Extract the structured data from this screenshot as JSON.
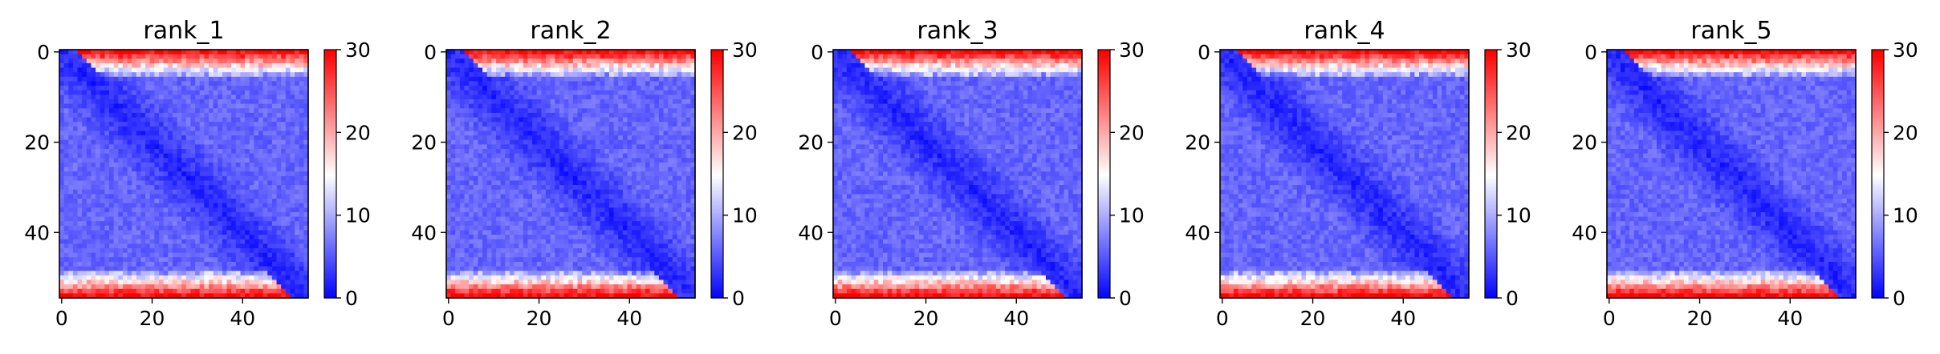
{
  "figure": {
    "colormap": "bwr",
    "colors": {
      "low": "#0000ff",
      "mid": "#ffffff",
      "high": "#ff0000"
    }
  },
  "chart_data": [
    {
      "type": "heatmap",
      "title": "rank_1",
      "matrix_size": 55,
      "x_ticks": [
        0,
        20,
        40
      ],
      "y_ticks": [
        0,
        20,
        40
      ],
      "xlim": [
        -0.5,
        54.5
      ],
      "ylim": [
        54.5,
        -0.5
      ],
      "colorbar": {
        "range": [
          0,
          30
        ],
        "ticks": [
          0,
          10,
          20,
          30
        ]
      },
      "value_model": {
        "near_diagonal": 2,
        "typical_off_diagonal": 6,
        "border_rows_cols": 30,
        "border_width": 6
      },
      "colormap": "bwr",
      "grid": false,
      "legend": "none"
    },
    {
      "type": "heatmap",
      "title": "rank_2",
      "matrix_size": 55,
      "x_ticks": [
        0,
        20,
        40
      ],
      "y_ticks": [
        0,
        20,
        40
      ],
      "xlim": [
        -0.5,
        54.5
      ],
      "ylim": [
        54.5,
        -0.5
      ],
      "colorbar": {
        "range": [
          0,
          30
        ],
        "ticks": [
          0,
          10,
          20,
          30
        ]
      },
      "value_model": {
        "near_diagonal": 2,
        "typical_off_diagonal": 6,
        "border_rows_cols": 30,
        "border_width": 6
      },
      "colormap": "bwr",
      "grid": false,
      "legend": "none"
    },
    {
      "type": "heatmap",
      "title": "rank_3",
      "matrix_size": 55,
      "x_ticks": [
        0,
        20,
        40
      ],
      "y_ticks": [
        0,
        20,
        40
      ],
      "xlim": [
        -0.5,
        54.5
      ],
      "ylim": [
        54.5,
        -0.5
      ],
      "colorbar": {
        "range": [
          0,
          30
        ],
        "ticks": [
          0,
          10,
          20,
          30
        ]
      },
      "value_model": {
        "near_diagonal": 2,
        "typical_off_diagonal": 6,
        "border_rows_cols": 30,
        "border_width": 6
      },
      "colormap": "bwr",
      "grid": false,
      "legend": "none"
    },
    {
      "type": "heatmap",
      "title": "rank_4",
      "matrix_size": 55,
      "x_ticks": [
        0,
        20,
        40
      ],
      "y_ticks": [
        0,
        20,
        40
      ],
      "xlim": [
        -0.5,
        54.5
      ],
      "ylim": [
        54.5,
        -0.5
      ],
      "colorbar": {
        "range": [
          0,
          30
        ],
        "ticks": [
          0,
          10,
          20,
          30
        ]
      },
      "value_model": {
        "near_diagonal": 2,
        "typical_off_diagonal": 6,
        "border_rows_cols": 30,
        "border_width": 6
      },
      "colormap": "bwr",
      "grid": false,
      "legend": "none"
    },
    {
      "type": "heatmap",
      "title": "rank_5",
      "matrix_size": 55,
      "x_ticks": [
        0,
        20,
        40
      ],
      "y_ticks": [
        0,
        20,
        40
      ],
      "xlim": [
        -0.5,
        54.5
      ],
      "ylim": [
        54.5,
        -0.5
      ],
      "colorbar": {
        "range": [
          0,
          30
        ],
        "ticks": [
          0,
          10,
          20,
          30
        ]
      },
      "value_model": {
        "near_diagonal": 2,
        "typical_off_diagonal": 6,
        "border_rows_cols": 30,
        "border_width": 6
      },
      "colormap": "bwr",
      "grid": false,
      "legend": "none"
    }
  ]
}
